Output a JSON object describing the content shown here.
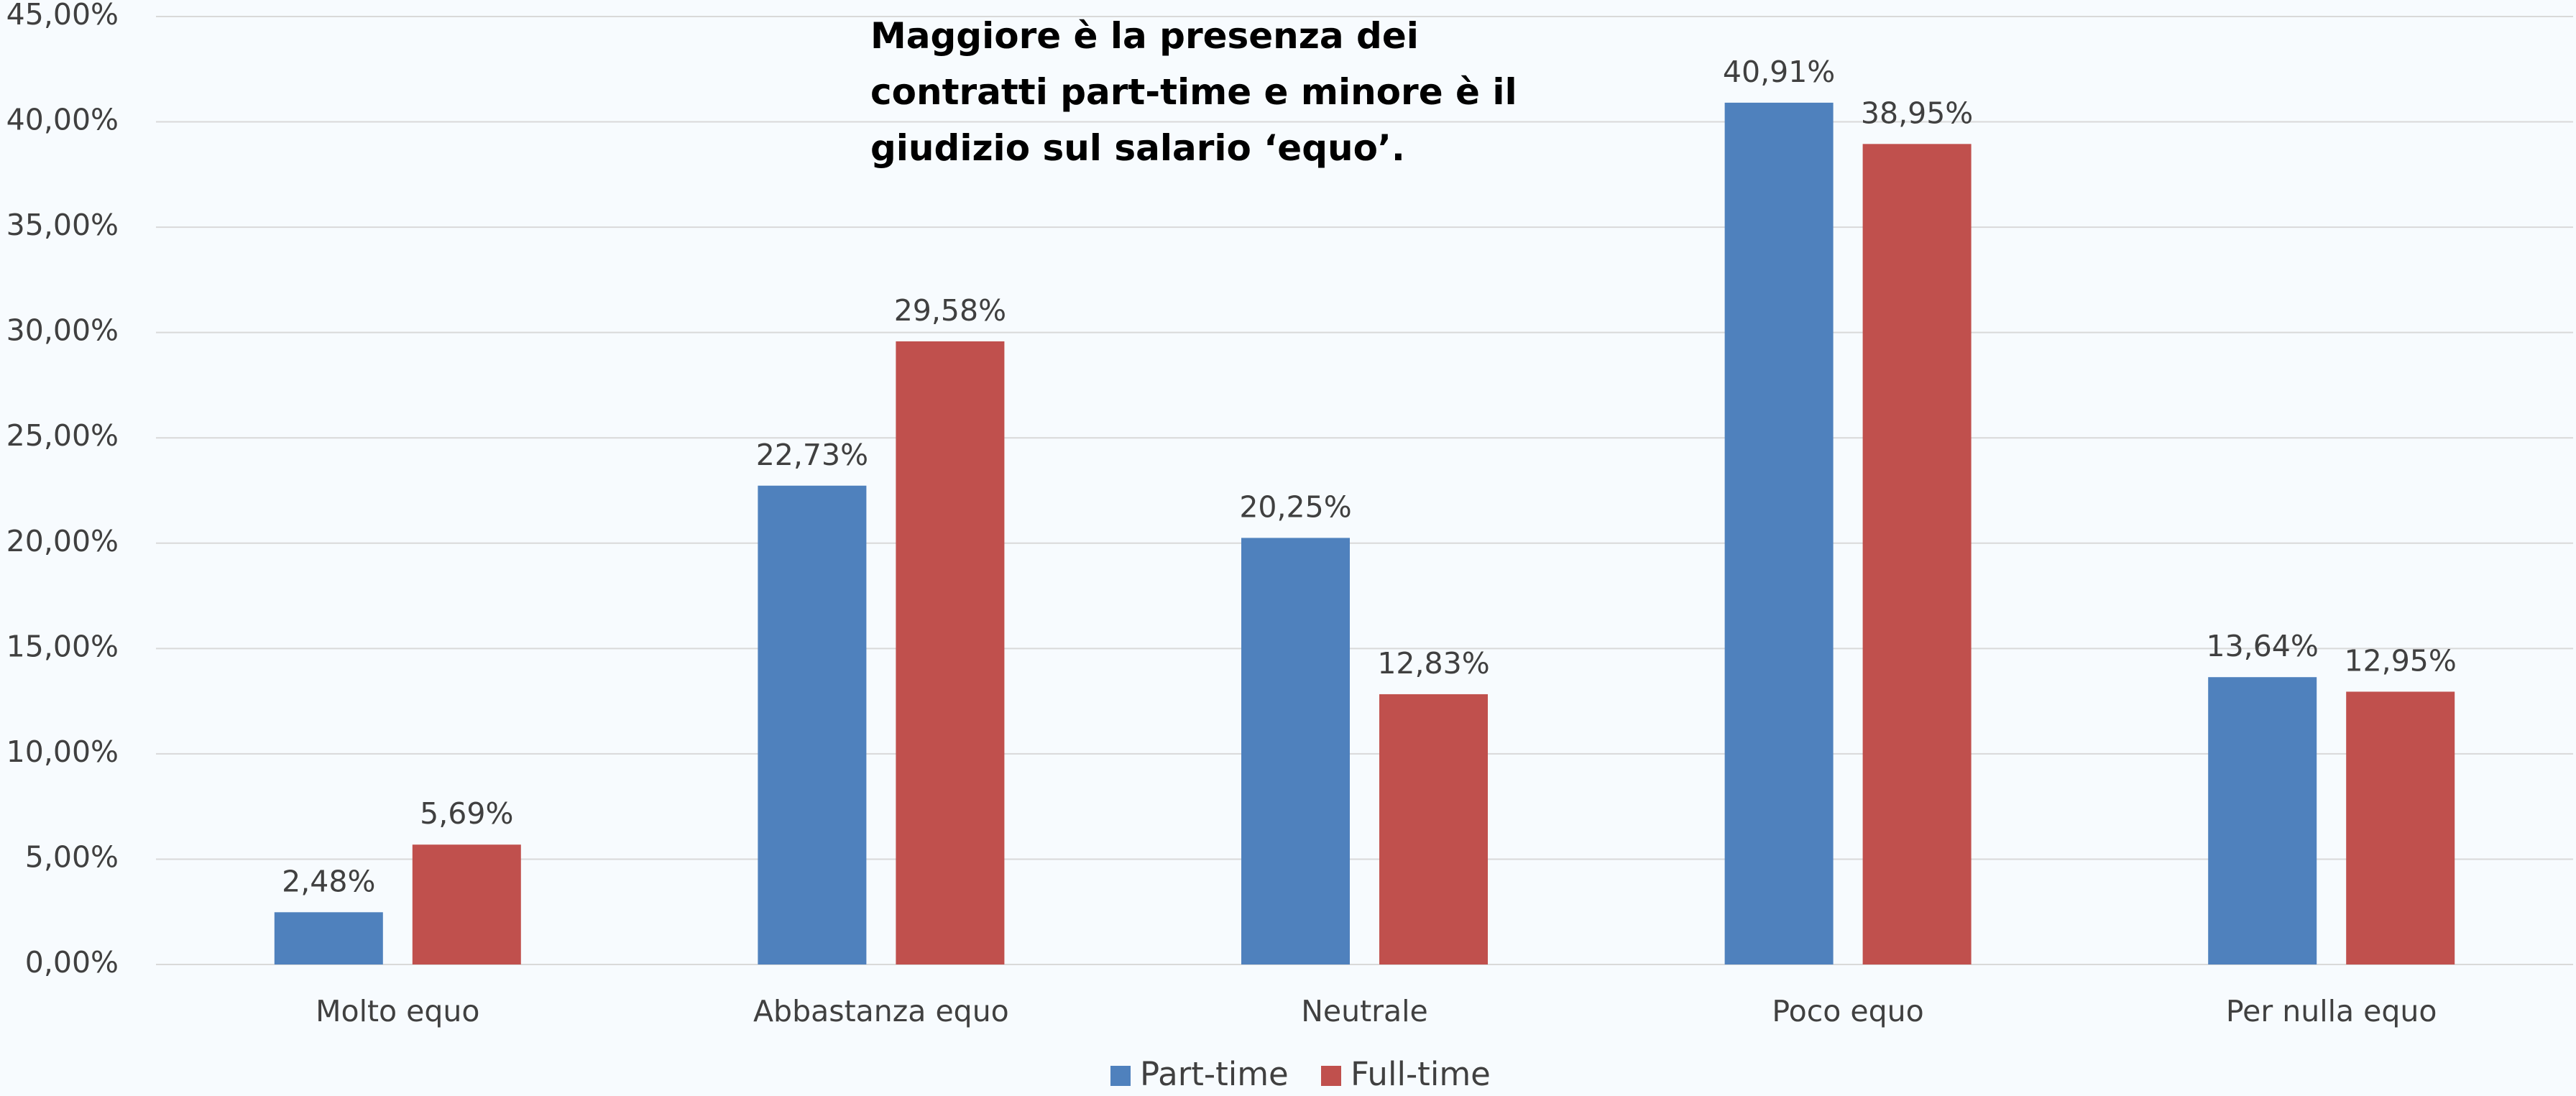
{
  "chart_data": {
    "type": "bar",
    "title": [
      "Maggiore è la presenza dei",
      "contratti part-time e minore è il",
      "giudizio sul salario ‘equo’."
    ],
    "categories": [
      "Molto equo",
      "Abbastanza equo",
      "Neutrale",
      "Poco equo",
      "Per nulla equo"
    ],
    "series": [
      {
        "name": "Part-time",
        "color": "#4f81bd",
        "values": [
          2.48,
          22.73,
          20.25,
          40.91,
          13.64
        ],
        "value_labels": [
          "2,48%",
          "22,73%",
          "20,25%",
          "40,91%",
          "13,64%"
        ]
      },
      {
        "name": "Full-time",
        "color": "#c0504d",
        "values": [
          5.69,
          29.58,
          12.83,
          38.95,
          12.95
        ],
        "value_labels": [
          "5,69%",
          "29,58%",
          "12,83%",
          "38,95%",
          "12,95%"
        ]
      }
    ],
    "ylim": [
      0,
      45
    ],
    "yticks": [
      {
        "value": 0,
        "label": "0,00%"
      },
      {
        "value": 5,
        "label": "5,00%"
      },
      {
        "value": 10,
        "label": "10,00%"
      },
      {
        "value": 15,
        "label": "15,00%"
      },
      {
        "value": 20,
        "label": "20,00%"
      },
      {
        "value": 25,
        "label": "25,00%"
      },
      {
        "value": 30,
        "label": "30,00%"
      },
      {
        "value": 35,
        "label": "35,00%"
      },
      {
        "value": 40,
        "label": "40,00%"
      },
      {
        "value": 45,
        "label": "45,00%"
      }
    ],
    "grid": true,
    "legend": "bottom"
  }
}
